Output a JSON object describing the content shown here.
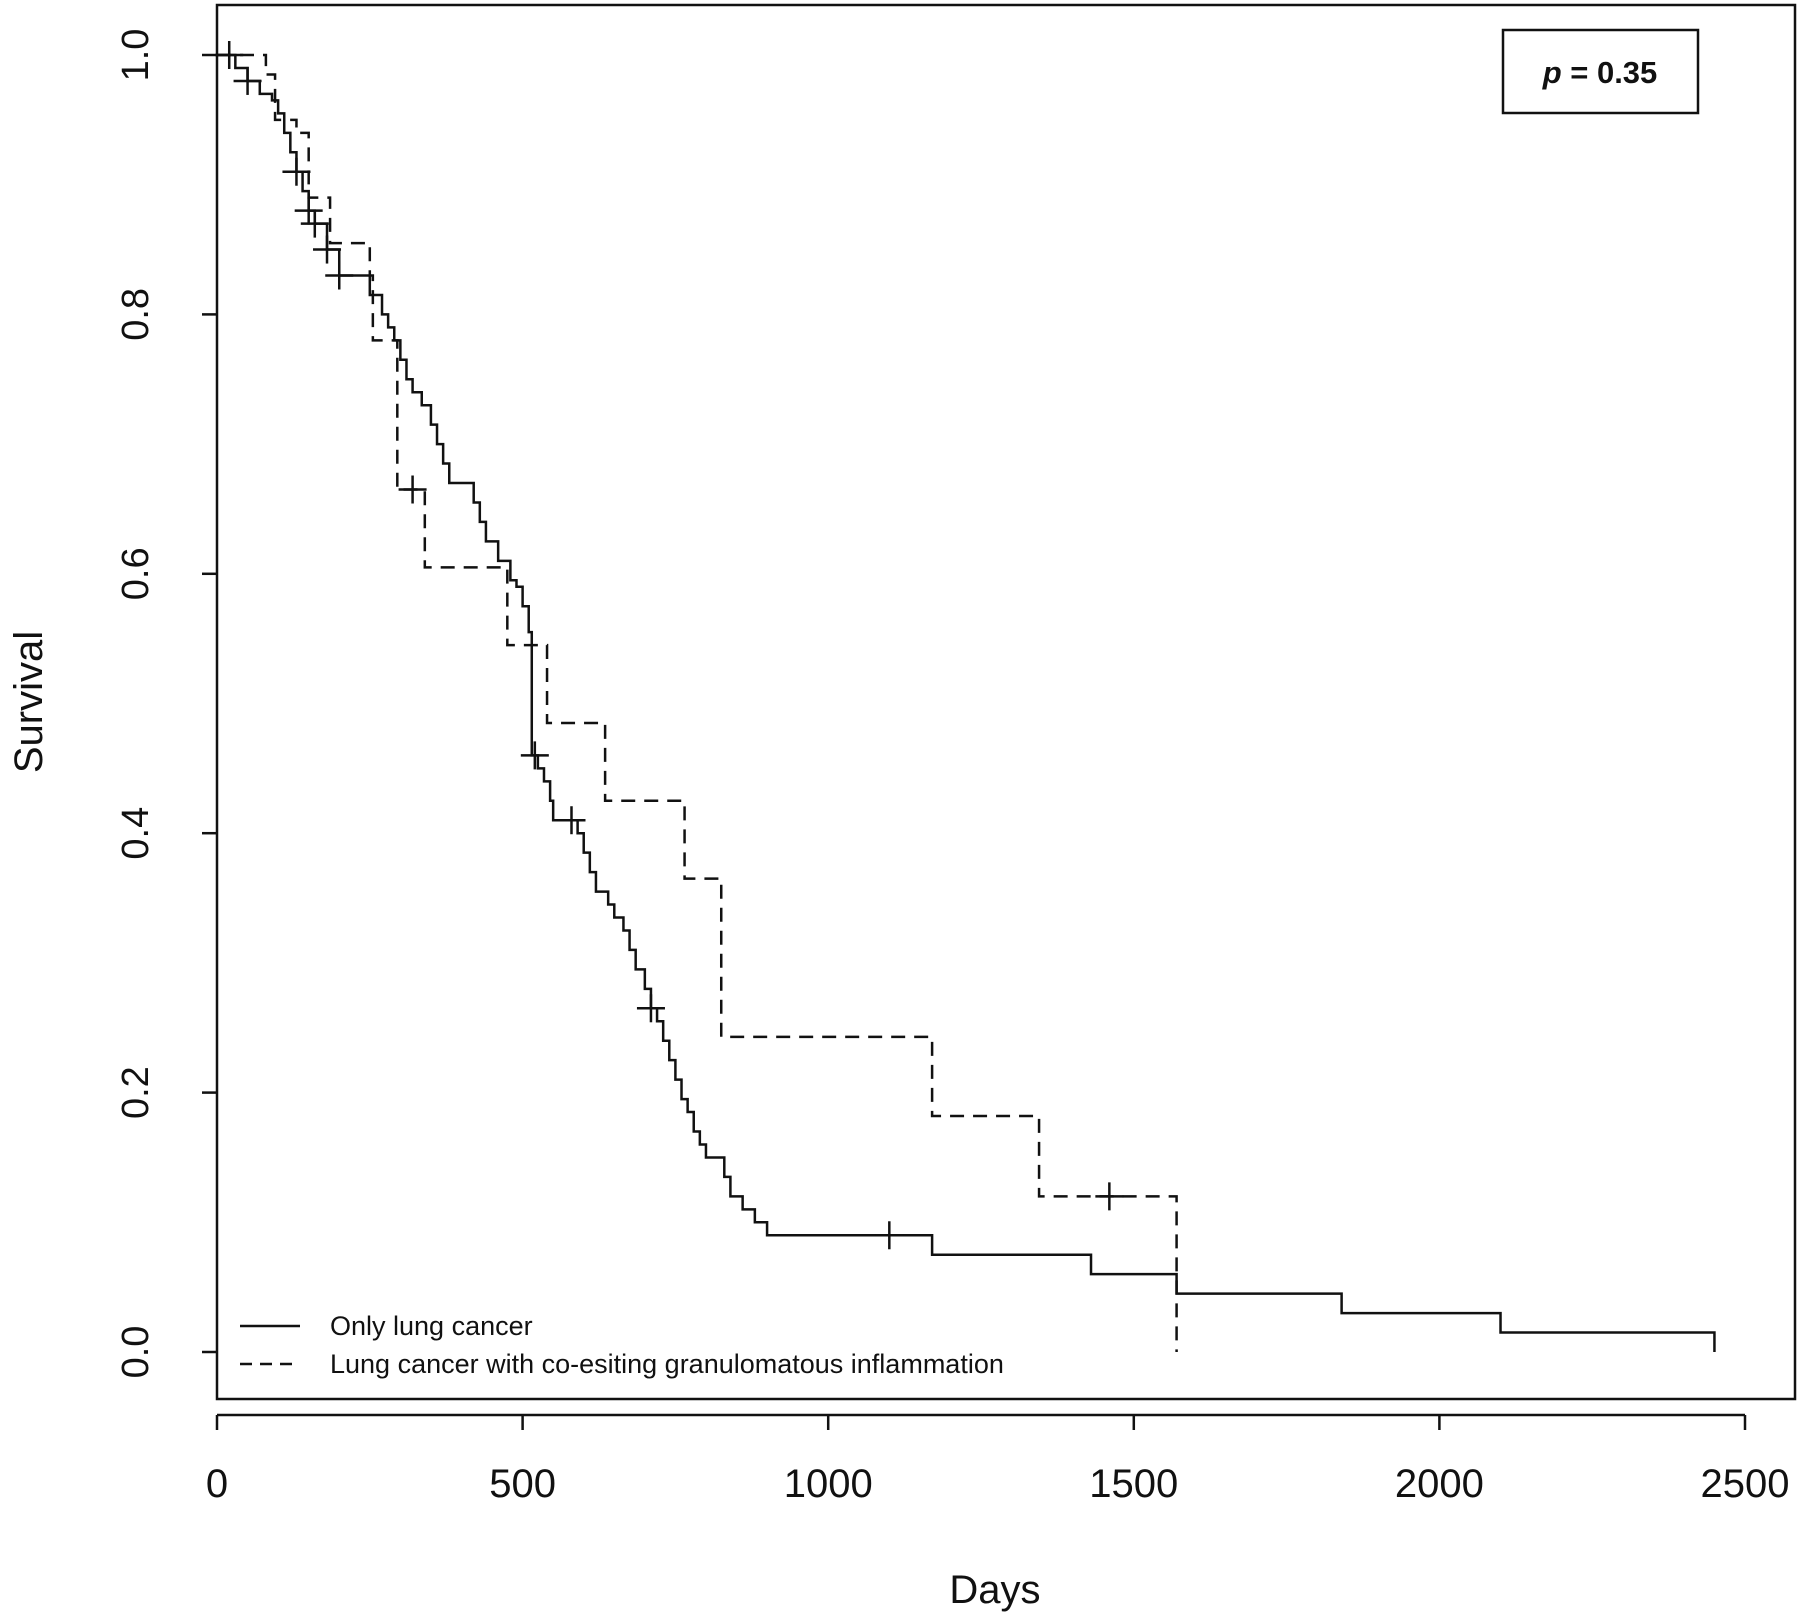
{
  "chart_data": {
    "type": "line",
    "title": "",
    "xlabel": "Days",
    "ylabel": "Survival",
    "xlim": [
      0,
      2500
    ],
    "ylim": [
      0.0,
      1.0
    ],
    "x_ticks": [
      0,
      500,
      1000,
      1500,
      2000,
      2500
    ],
    "x_tick_labels": [
      "0",
      "500",
      "1000",
      "1500",
      "2000",
      "2500"
    ],
    "y_ticks": [
      0.0,
      0.2,
      0.4,
      0.6,
      0.8,
      1.0
    ],
    "y_tick_labels": [
      "0.0",
      "0.2",
      "0.4",
      "0.6",
      "0.8",
      "1.0"
    ],
    "grid": false,
    "legend_position": "bottom-left",
    "annotation": {
      "italic": "p",
      "rest": " = 0.35"
    },
    "series": [
      {
        "name": "Only lung cancer",
        "style": "solid",
        "steps": [
          [
            0,
            1.0
          ],
          [
            30,
            0.99
          ],
          [
            50,
            0.98
          ],
          [
            70,
            0.97
          ],
          [
            90,
            0.965
          ],
          [
            100,
            0.955
          ],
          [
            110,
            0.94
          ],
          [
            120,
            0.925
          ],
          [
            130,
            0.91
          ],
          [
            140,
            0.895
          ],
          [
            150,
            0.88
          ],
          [
            160,
            0.87
          ],
          [
            180,
            0.85
          ],
          [
            200,
            0.83
          ],
          [
            245,
            0.83
          ],
          [
            250,
            0.815
          ],
          [
            270,
            0.8
          ],
          [
            280,
            0.79
          ],
          [
            290,
            0.78
          ],
          [
            300,
            0.765
          ],
          [
            310,
            0.75
          ],
          [
            320,
            0.74
          ],
          [
            335,
            0.73
          ],
          [
            350,
            0.715
          ],
          [
            360,
            0.7
          ],
          [
            370,
            0.685
          ],
          [
            380,
            0.67
          ],
          [
            420,
            0.655
          ],
          [
            430,
            0.64
          ],
          [
            440,
            0.625
          ],
          [
            460,
            0.61
          ],
          [
            480,
            0.595
          ],
          [
            490,
            0.59
          ],
          [
            500,
            0.575
          ],
          [
            510,
            0.555
          ],
          [
            515,
            0.46
          ],
          [
            525,
            0.45
          ],
          [
            535,
            0.44
          ],
          [
            545,
            0.425
          ],
          [
            550,
            0.41
          ],
          [
            575,
            0.41
          ],
          [
            590,
            0.4
          ],
          [
            600,
            0.385
          ],
          [
            610,
            0.37
          ],
          [
            620,
            0.355
          ],
          [
            640,
            0.345
          ],
          [
            650,
            0.335
          ],
          [
            665,
            0.325
          ],
          [
            675,
            0.31
          ],
          [
            685,
            0.295
          ],
          [
            700,
            0.28
          ],
          [
            710,
            0.265
          ],
          [
            720,
            0.255
          ],
          [
            730,
            0.24
          ],
          [
            740,
            0.225
          ],
          [
            750,
            0.21
          ],
          [
            760,
            0.195
          ],
          [
            770,
            0.185
          ],
          [
            780,
            0.17
          ],
          [
            790,
            0.16
          ],
          [
            800,
            0.15
          ],
          [
            830,
            0.135
          ],
          [
            840,
            0.12
          ],
          [
            860,
            0.11
          ],
          [
            880,
            0.1
          ],
          [
            900,
            0.09
          ],
          [
            1170,
            0.075
          ],
          [
            1430,
            0.06
          ],
          [
            1570,
            0.045
          ],
          [
            1840,
            0.03
          ],
          [
            2100,
            0.015
          ],
          [
            2450,
            0.0
          ]
        ],
        "censor_x": [
          20,
          50,
          130,
          150,
          160,
          180,
          200,
          520,
          580,
          710,
          1100
        ],
        "end_x": 2450
      },
      {
        "name": "Lung cancer with co-esiting granulomatous inflammation",
        "style": "dashed",
        "steps": [
          [
            0,
            1.0
          ],
          [
            80,
            0.985
          ],
          [
            95,
            0.95
          ],
          [
            130,
            0.94
          ],
          [
            150,
            0.89
          ],
          [
            185,
            0.855
          ],
          [
            250,
            0.83
          ],
          [
            255,
            0.78
          ],
          [
            295,
            0.665
          ],
          [
            340,
            0.605
          ],
          [
            475,
            0.545
          ],
          [
            540,
            0.485
          ],
          [
            635,
            0.425
          ],
          [
            765,
            0.365
          ],
          [
            825,
            0.243
          ],
          [
            1170,
            0.182
          ],
          [
            1345,
            0.12
          ],
          [
            1570,
            0.0
          ]
        ],
        "censor_x": [
          320,
          1460
        ],
        "end_x": 1570
      }
    ]
  }
}
